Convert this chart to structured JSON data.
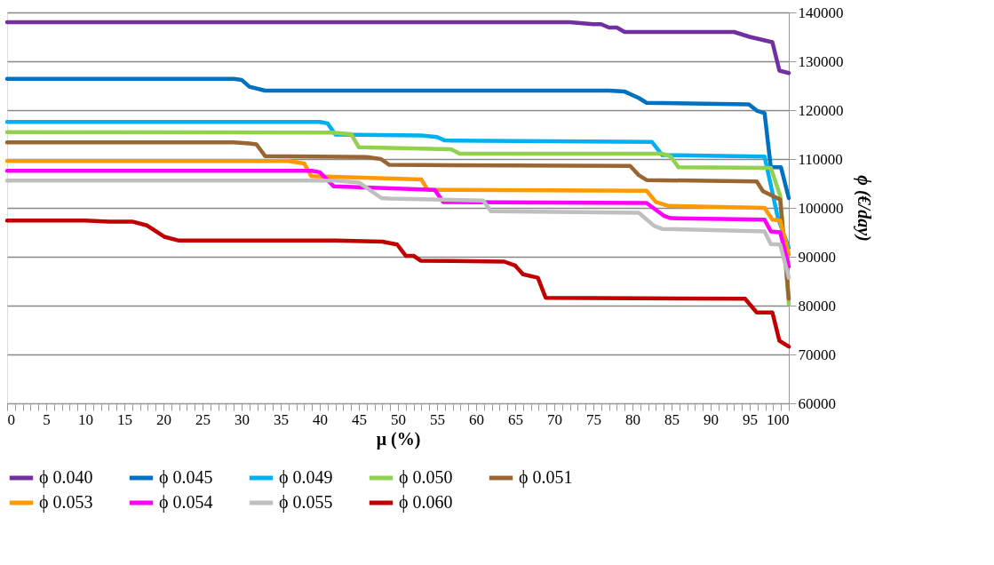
{
  "chart_data": {
    "type": "line",
    "xlabel": "μ (%)",
    "ylabel": "ϕ (€/day)",
    "xlim": [
      0,
      100
    ],
    "ylim": [
      60000,
      140000
    ],
    "xticks": [
      0,
      {
        "value": 1,
        "label": null
      },
      {
        "value": 2,
        "label": null
      },
      {
        "value": 3,
        "label": null
      },
      {
        "value": 4,
        "label": null
      },
      5,
      {
        "value": 6,
        "label": null
      },
      {
        "value": 7,
        "label": null
      },
      {
        "value": 8,
        "label": null
      },
      {
        "value": 9,
        "label": null
      },
      10,
      {
        "value": 11,
        "label": null
      },
      {
        "value": 12,
        "label": null
      },
      {
        "value": 13,
        "label": null
      },
      {
        "value": 14,
        "label": null
      },
      15,
      {
        "value": 16,
        "label": null
      },
      {
        "value": 17,
        "label": null
      },
      {
        "value": 18,
        "label": null
      },
      {
        "value": 19,
        "label": null
      },
      20,
      {
        "value": 21,
        "label": null
      },
      {
        "value": 22,
        "label": null
      },
      {
        "value": 23,
        "label": null
      },
      {
        "value": 24,
        "label": null
      },
      25,
      {
        "value": 26,
        "label": null
      },
      {
        "value": 27,
        "label": null
      },
      {
        "value": 28,
        "label": null
      },
      {
        "value": 29,
        "label": null
      },
      30,
      {
        "value": 31,
        "label": null
      },
      {
        "value": 32,
        "label": null
      },
      {
        "value": 33,
        "label": null
      },
      {
        "value": 34,
        "label": null
      },
      35,
      {
        "value": 36,
        "label": null
      },
      {
        "value": 37,
        "label": null
      },
      {
        "value": 38,
        "label": null
      },
      {
        "value": 39,
        "label": null
      },
      40,
      {
        "value": 41,
        "label": null
      },
      {
        "value": 42,
        "label": null
      },
      {
        "value": 43,
        "label": null
      },
      {
        "value": 44,
        "label": null
      },
      45,
      {
        "value": 46,
        "label": null
      },
      {
        "value": 47,
        "label": null
      },
      {
        "value": 48,
        "label": null
      },
      {
        "value": 49,
        "label": null
      },
      50,
      {
        "value": 51,
        "label": null
      },
      {
        "value": 52,
        "label": null
      },
      {
        "value": 53,
        "label": null
      },
      {
        "value": 54,
        "label": null
      },
      55,
      {
        "value": 56,
        "label": null
      },
      {
        "value": 57,
        "label": null
      },
      {
        "value": 58,
        "label": null
      },
      {
        "value": 59,
        "label": null
      },
      60,
      {
        "value": 61,
        "label": null
      },
      {
        "value": 62,
        "label": null
      },
      {
        "value": 63,
        "label": null
      },
      {
        "value": 64,
        "label": null
      },
      65,
      {
        "value": 66,
        "label": null
      },
      {
        "value": 67,
        "label": null
      },
      {
        "value": 68,
        "label": null
      },
      {
        "value": 69,
        "label": null
      },
      70,
      {
        "value": 71,
        "label": null
      },
      {
        "value": 72,
        "label": null
      },
      {
        "value": 73,
        "label": null
      },
      {
        "value": 74,
        "label": null
      },
      75,
      {
        "value": 76,
        "label": null
      },
      {
        "value": 77,
        "label": null
      },
      {
        "value": 78,
        "label": null
      },
      {
        "value": 79,
        "label": null
      },
      80,
      {
        "value": 81,
        "label": null
      },
      {
        "value": 82,
        "label": null
      },
      {
        "value": 83,
        "label": null
      },
      {
        "value": 84,
        "label": null
      },
      85,
      {
        "value": 86,
        "label": null
      },
      {
        "value": 87,
        "label": null
      },
      {
        "value": 88,
        "label": null
      },
      {
        "value": 89,
        "label": null
      },
      90,
      {
        "value": 91,
        "label": null
      },
      {
        "value": 92,
        "label": null
      },
      {
        "value": 93,
        "label": null
      },
      {
        "value": 94,
        "label": null
      },
      95,
      {
        "value": 96,
        "label": null
      },
      {
        "value": 97,
        "label": null
      },
      {
        "value": 98,
        "label": null
      },
      {
        "value": 99,
        "label": null
      },
      100
    ],
    "yticks": [
      60000,
      70000,
      80000,
      90000,
      100000,
      110000,
      120000,
      130000,
      140000
    ],
    "grid": "y",
    "legend": "bottom",
    "marker": "none",
    "line_style": "solid",
    "series": [
      {
        "name": "ϕ 0.040",
        "color": "#7030a0",
        "x": [
          0,
          72,
          75,
          76,
          77,
          78,
          79,
          93,
          95,
          97.9,
          98.8,
          100
        ],
        "values": [
          138000,
          138000,
          137600,
          137600,
          136900,
          136900,
          136000,
          136000,
          135000,
          133900,
          128100,
          127600
        ]
      },
      {
        "name": "ϕ 0.045",
        "color": "#0070c0",
        "x": [
          0,
          29,
          30,
          31,
          33,
          77,
          79,
          80.8,
          81.8,
          94.9,
          95.9,
          96.9,
          97.7,
          99,
          100
        ],
        "values": [
          126400,
          126400,
          126200,
          124800,
          124000,
          124000,
          123800,
          122500,
          121500,
          121200,
          119900,
          119400,
          108300,
          108300,
          102000
        ]
      },
      {
        "name": "ϕ 0.049",
        "color": "#00b0f0",
        "x": [
          0,
          40,
          41,
          42,
          53,
          55,
          56,
          82.5,
          83.8,
          96.9,
          98.6,
          100
        ],
        "values": [
          117600,
          117600,
          117300,
          115000,
          114800,
          114500,
          113800,
          113500,
          110800,
          110500,
          98000,
          91800
        ]
      },
      {
        "name": "ϕ 0.050",
        "color": "#92d050",
        "x": [
          0,
          41.5,
          44,
          45,
          56.8,
          57.9,
          83.8,
          84.9,
          85.9,
          97.7,
          98.9,
          100
        ],
        "values": [
          115500,
          115400,
          115100,
          112400,
          112000,
          111100,
          111100,
          110500,
          108300,
          108200,
          102500,
          80300
        ]
      },
      {
        "name": "ϕ 0.051",
        "color": "#996633",
        "x": [
          0,
          29,
          31,
          31.9,
          33,
          46,
          47.8,
          48.9,
          79.7,
          80.8,
          81.8,
          95.9,
          96.7,
          98.9,
          100
        ],
        "values": [
          113400,
          113400,
          113200,
          113000,
          110600,
          110400,
          110000,
          108800,
          108600,
          106700,
          105700,
          105400,
          103400,
          101700,
          81400
        ]
      },
      {
        "name": "ϕ 0.053",
        "color": "#ff9900",
        "x": [
          0,
          36,
          38,
          38.9,
          53,
          53.8,
          81.8,
          83,
          84.6,
          96.9,
          97.9,
          98.9,
          100
        ],
        "values": [
          109600,
          109600,
          109100,
          106500,
          105800,
          103700,
          103500,
          101200,
          100400,
          100000,
          97600,
          97400,
          90500
        ]
      },
      {
        "name": "ϕ 0.054",
        "color": "#ff00ff",
        "x": [
          0,
          39,
          40,
          41.8,
          54.7,
          55.8,
          81.8,
          84,
          84.9,
          96.9,
          97.7,
          98.9,
          100
        ],
        "values": [
          107600,
          107600,
          107300,
          104400,
          103700,
          101200,
          101000,
          98400,
          97900,
          97600,
          95200,
          95000,
          88000
        ]
      },
      {
        "name": "ϕ 0.055",
        "color": "#bfbfbf",
        "x": [
          0,
          42,
          45,
          47.9,
          48.9,
          60.9,
          61.9,
          80.8,
          82.8,
          83.8,
          96.9,
          97.7,
          98.9,
          100
        ],
        "values": [
          105600,
          105600,
          105200,
          102000,
          101900,
          101500,
          99300,
          99000,
          96300,
          95700,
          95200,
          92600,
          92500,
          85700
        ]
      },
      {
        "name": "ϕ 0.060",
        "color": "#c00000",
        "x": [
          0,
          10,
          13,
          16,
          17.9,
          20.1,
          22,
          42,
          48,
          49.9,
          51,
          52,
          52.9,
          63.6,
          65,
          66,
          67.9,
          68.9,
          94.4,
          95.9,
          97.9,
          98.8,
          100
        ],
        "values": [
          97400,
          97400,
          97200,
          97200,
          96400,
          94100,
          93300,
          93300,
          93100,
          92500,
          90200,
          90200,
          89200,
          89000,
          88200,
          86400,
          85700,
          81600,
          81400,
          78600,
          78600,
          72800,
          71600
        ]
      }
    ]
  }
}
